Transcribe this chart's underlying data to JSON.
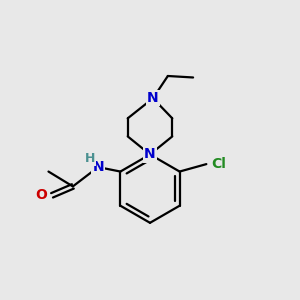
{
  "bg_color": "#e8e8e8",
  "bond_color": "#000000",
  "N_color": "#0000cc",
  "O_color": "#cc0000",
  "Cl_color": "#228B22",
  "H_color": "#4a9090",
  "line_width": 1.6,
  "font_size_atom": 10,
  "figsize": [
    3.0,
    3.0
  ],
  "dpi": 100,
  "xlim": [
    0,
    10
  ],
  "ylim": [
    0,
    10
  ]
}
